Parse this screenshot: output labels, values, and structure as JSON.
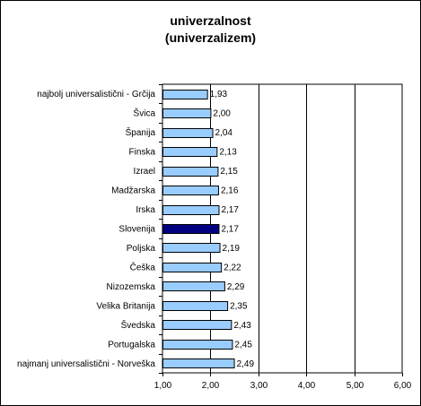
{
  "chart_data": {
    "type": "bar",
    "orientation": "horizontal",
    "title": "univerzalnost",
    "subtitle": "(univerzalizem)",
    "categories": [
      "najbolj universalistični - Grčija",
      "Švica",
      "Španija",
      "Finska",
      "Izrael",
      "Madžarska",
      "Irska",
      "Slovenija",
      "Poljska",
      "Češka",
      "Nizozemska",
      "Velika Britanija",
      "Švedska",
      "Portugalska",
      "najmanj universalistični - Norveška"
    ],
    "values": [
      1.93,
      2.0,
      2.04,
      2.13,
      2.15,
      2.16,
      2.17,
      2.17,
      2.19,
      2.22,
      2.29,
      2.35,
      2.43,
      2.45,
      2.49
    ],
    "value_labels": [
      "1,93",
      "2,00",
      "2,04",
      "2,13",
      "2,15",
      "2,16",
      "2,17",
      "2,17",
      "2,19",
      "2,22",
      "2,29",
      "2,35",
      "2,43",
      "2,45",
      "2,49"
    ],
    "highlight_index": 7,
    "xlim": [
      1,
      6
    ],
    "x_ticks": [
      1,
      2,
      3,
      4,
      5,
      6
    ],
    "x_tick_labels": [
      "1,00",
      "2,00",
      "3,00",
      "4,00",
      "5,00",
      "6,00"
    ],
    "grid": "vertical major gridlines",
    "legend": "none",
    "colors": {
      "bar": "#99ccff",
      "bar_highlight": "#000080",
      "bar_outline": "#000000",
      "grid": "#000000"
    }
  }
}
